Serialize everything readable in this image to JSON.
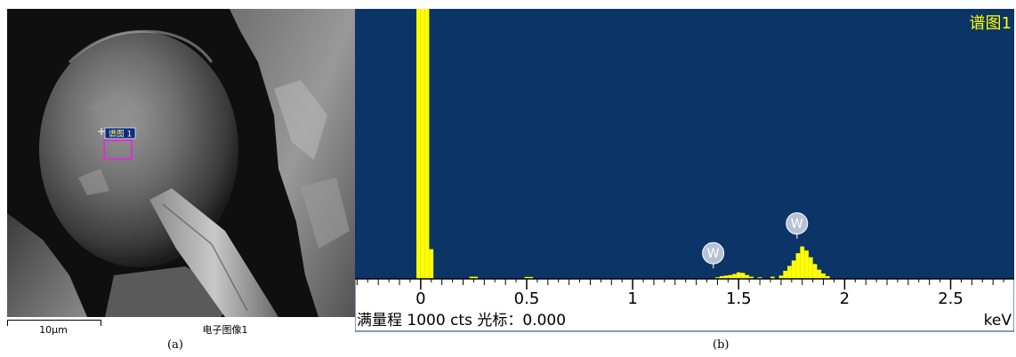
{
  "panel_a": {
    "label": "(a)",
    "scale_bar_label": "10µm",
    "image_caption": "电子图像1",
    "spectrum_marker_label": "谱图 1"
  },
  "panel_b": {
    "label": "(b)",
    "spectrum_title": "谱图1",
    "full_scale_text": "满量程  1000 cts 光标：0.000",
    "x_unit": "keV"
  },
  "colors": {
    "plot_background": "#0b3566",
    "spectrum_fill": "#ffff00",
    "title_color": "#ffff00",
    "peak_marker": "#b8c2d6",
    "marker_box": "#d633d6"
  },
  "chart_data": {
    "type": "bar",
    "title": "谱图1",
    "xlabel": "keV",
    "ylabel": "",
    "x_ticks": [
      "0",
      "0.5",
      "1",
      "1.5",
      "2",
      "2.5"
    ],
    "xlim": [
      -0.31,
      2.8
    ],
    "ylim": [
      0,
      1000
    ],
    "bins": [
      {
        "x": -0.01,
        "y": 1000
      },
      {
        "x": 0.01,
        "y": 1000
      },
      {
        "x": 0.03,
        "y": 1000
      },
      {
        "x": 0.05,
        "y": 110
      },
      {
        "x": 0.24,
        "y": 8
      },
      {
        "x": 0.26,
        "y": 8
      },
      {
        "x": 0.5,
        "y": 7
      },
      {
        "x": 0.52,
        "y": 7
      },
      {
        "x": 1.4,
        "y": 6
      },
      {
        "x": 1.42,
        "y": 10
      },
      {
        "x": 1.44,
        "y": 12
      },
      {
        "x": 1.46,
        "y": 14
      },
      {
        "x": 1.48,
        "y": 18
      },
      {
        "x": 1.5,
        "y": 24
      },
      {
        "x": 1.52,
        "y": 22
      },
      {
        "x": 1.54,
        "y": 14
      },
      {
        "x": 1.56,
        "y": 8
      },
      {
        "x": 1.6,
        "y": 6
      },
      {
        "x": 1.66,
        "y": 8
      },
      {
        "x": 1.7,
        "y": 12
      },
      {
        "x": 1.72,
        "y": 30
      },
      {
        "x": 1.74,
        "y": 48
      },
      {
        "x": 1.76,
        "y": 68
      },
      {
        "x": 1.78,
        "y": 95
      },
      {
        "x": 1.8,
        "y": 120
      },
      {
        "x": 1.82,
        "y": 105
      },
      {
        "x": 1.84,
        "y": 80
      },
      {
        "x": 1.86,
        "y": 55
      },
      {
        "x": 1.88,
        "y": 34
      },
      {
        "x": 1.9,
        "y": 20
      },
      {
        "x": 1.92,
        "y": 10
      }
    ],
    "bin_width": 0.02,
    "peak_labels": [
      {
        "element": "W",
        "x": 1.38,
        "y": 95
      },
      {
        "element": "W",
        "x": 1.775,
        "y": 205
      }
    ]
  }
}
